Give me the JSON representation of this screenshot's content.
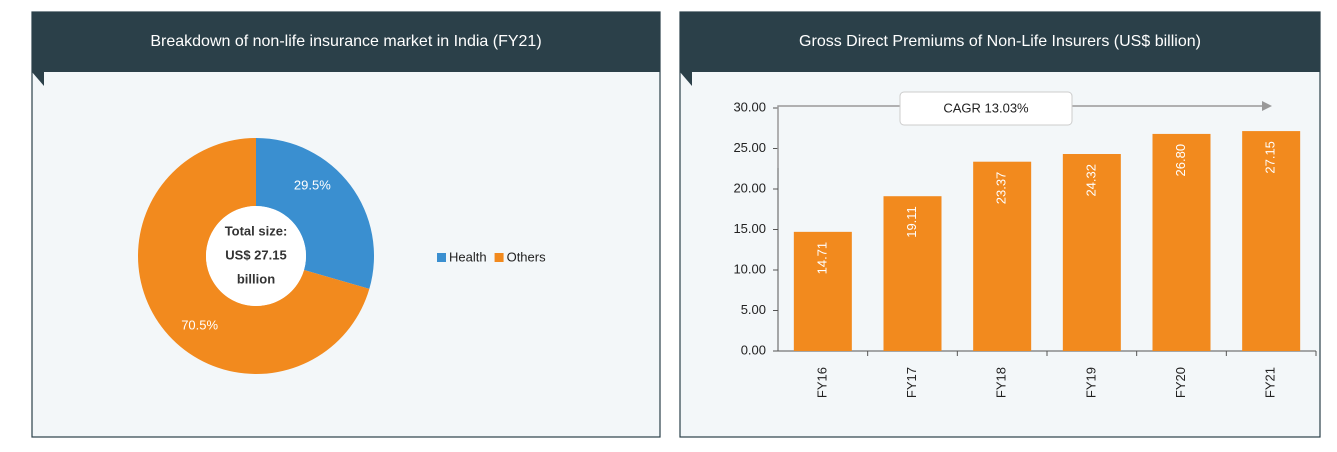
{
  "chart_data": [
    {
      "type": "pie",
      "title": "Breakdown of non-life insurance market in India (FY21)",
      "categories": [
        "Health",
        "Others"
      ],
      "values": [
        29.5,
        70.5
      ],
      "value_labels": [
        "29.5%",
        "70.5%"
      ],
      "colors": [
        "#3a8fd0",
        "#f28a1e"
      ],
      "center_text": [
        "Total size:",
        "US$ 27.15",
        "billion"
      ],
      "legend": "right"
    },
    {
      "type": "bar",
      "title": "Gross Direct Premiums of Non-Life Insurers (US$ billion)",
      "categories": [
        "FY16",
        "FY17",
        "FY18",
        "FY19",
        "FY20",
        "FY21"
      ],
      "values": [
        14.71,
        19.11,
        23.37,
        24.32,
        26.8,
        27.15
      ],
      "value_labels": [
        "14.71",
        "19.11",
        "23.37",
        "24.32",
        "26.80",
        "27.15"
      ],
      "color": "#f28a1e",
      "ylim": [
        0,
        30
      ],
      "yticks": [
        {
          "value": 0,
          "label": "0.00"
        },
        {
          "value": 5,
          "label": "5.00"
        },
        {
          "value": 10,
          "label": "10.00"
        },
        {
          "value": 15,
          "label": "15.00"
        },
        {
          "value": 20,
          "label": "20.00"
        },
        {
          "value": 25,
          "label": "25.00"
        },
        {
          "value": 30,
          "label": "30.00"
        }
      ],
      "annotation": "CAGR 13.03%",
      "grid": false
    }
  ]
}
